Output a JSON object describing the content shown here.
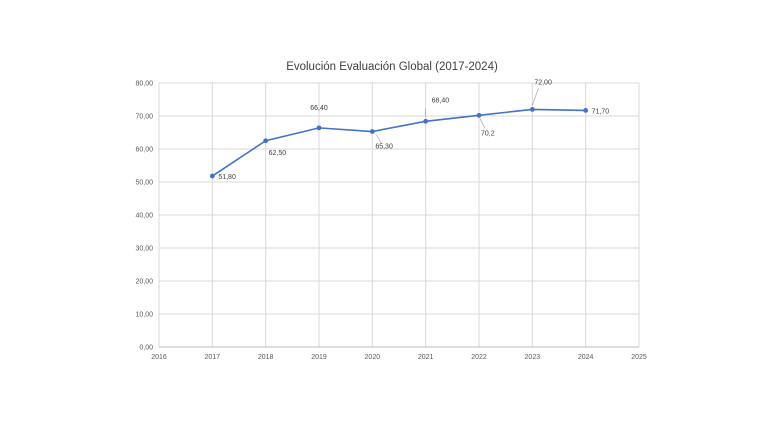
{
  "chart_data": {
    "type": "line",
    "title": "Evolución Evaluación Global (2017-2024)",
    "xlabel": "",
    "ylabel": "",
    "xlim": [
      2016,
      2025
    ],
    "ylim": [
      0,
      80
    ],
    "x_ticks": [
      "2016",
      "2017",
      "2018",
      "2019",
      "2020",
      "2021",
      "2022",
      "2023",
      "2024",
      "2025"
    ],
    "y_ticks": [
      "0,00",
      "10,00",
      "20,00",
      "30,00",
      "40,00",
      "50,00",
      "60,00",
      "70,00",
      "80,00"
    ],
    "grid": true,
    "legend": "none",
    "series": [
      {
        "color": "#4472C4",
        "x": [
          2017,
          2018,
          2019,
          2020,
          2021,
          2022,
          2023,
          2024
        ],
        "y": [
          51.8,
          62.5,
          66.4,
          65.3,
          68.4,
          70.2,
          72.0,
          71.7
        ],
        "labels": [
          "51,80",
          "62,50",
          "66,40",
          "65,30",
          "68,40",
          "70,2",
          "72,00",
          "71,70"
        ]
      }
    ]
  }
}
